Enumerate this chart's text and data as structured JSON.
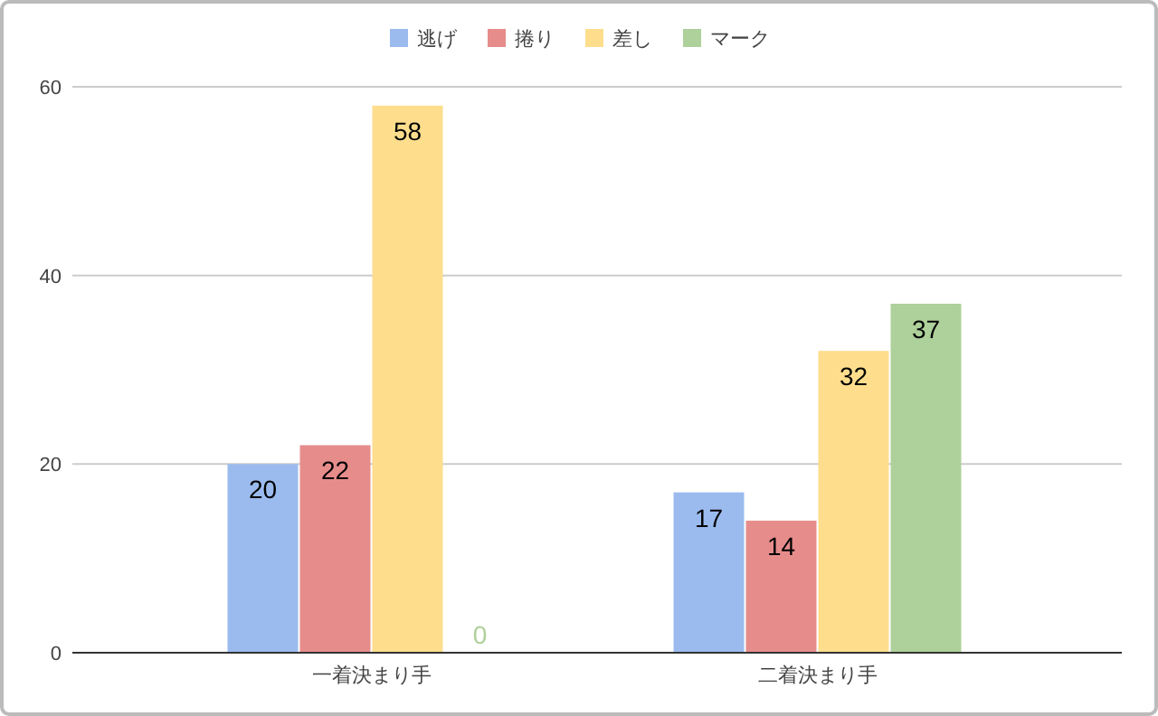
{
  "chart_data": {
    "type": "bar",
    "categories": [
      "一着決まり手",
      "二着決まり手"
    ],
    "series": [
      {
        "name": "逃げ",
        "color": "#9bbbef",
        "values": [
          20,
          17
        ]
      },
      {
        "name": "捲り",
        "color": "#e68d8c",
        "values": [
          22,
          14
        ]
      },
      {
        "name": "差し",
        "color": "#fede8d",
        "values": [
          58,
          32
        ]
      },
      {
        "name": "マーク",
        "color": "#aed09a",
        "values": [
          0,
          37
        ]
      }
    ],
    "ylim": [
      0,
      60
    ],
    "yticks": [
      0,
      20,
      40,
      60
    ],
    "grid": "y",
    "legend": "top",
    "data_labels": true
  }
}
